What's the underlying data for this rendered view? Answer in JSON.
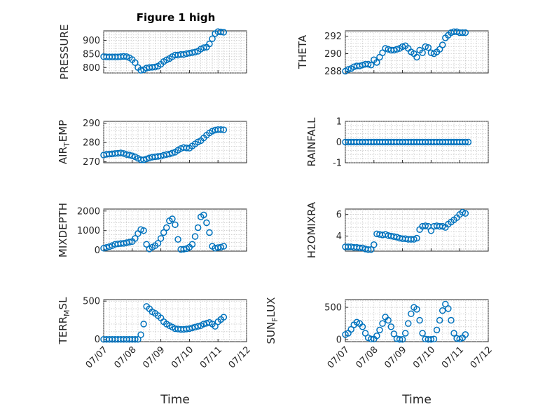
{
  "figure": {
    "title": "Figure 1 high",
    "marker_color": "#0072BD"
  },
  "chart_data": [
    {
      "type": "scatter",
      "ylabel": "PRESSURE",
      "xlabel": "",
      "ylim": [
        780,
        935
      ],
      "yticks": [
        800,
        850,
        900
      ],
      "xlim": [
        "07/07",
        "07/12"
      ],
      "xticks": [
        "07/07",
        "07/08",
        "07/09",
        "07/10",
        "07/11",
        "07/12"
      ],
      "grid": true,
      "x": [
        0.0,
        0.1,
        0.2,
        0.3,
        0.4,
        0.5,
        0.6,
        0.7,
        0.8,
        0.9,
        1.0,
        1.1,
        1.2,
        1.3,
        1.4,
        1.5,
        1.6,
        1.7,
        1.8,
        1.9,
        2.0,
        2.1,
        2.2,
        2.3,
        2.4,
        2.5,
        2.6,
        2.7,
        2.8,
        2.9,
        3.0,
        3.1,
        3.2,
        3.3,
        3.4,
        3.5,
        3.6,
        3.7,
        3.8,
        3.9,
        4.0,
        4.1,
        4.2
      ],
      "y": [
        840,
        839,
        839,
        839,
        839,
        839,
        840,
        841,
        840,
        836,
        829,
        818,
        800,
        790,
        792,
        798,
        800,
        801,
        802,
        805,
        812,
        822,
        828,
        833,
        840,
        846,
        846,
        848,
        848,
        851,
        853,
        855,
        857,
        860,
        868,
        873,
        875,
        887,
        906,
        925,
        932,
        931,
        930
      ]
    },
    {
      "type": "scatter",
      "ylabel": "THETA",
      "xlabel": "",
      "ylim": [
        287.8,
        292.6
      ],
      "yticks": [
        288,
        290,
        292
      ],
      "xlim": [
        "07/07",
        "07/12"
      ],
      "xticks": [
        "07/07",
        "07/08",
        "07/09",
        "07/10",
        "07/11",
        "07/12"
      ],
      "grid": true,
      "x": [
        0.0,
        0.1,
        0.2,
        0.3,
        0.4,
        0.5,
        0.6,
        0.7,
        0.8,
        0.9,
        1.0,
        1.1,
        1.2,
        1.3,
        1.4,
        1.5,
        1.6,
        1.7,
        1.8,
        1.9,
        2.0,
        2.1,
        2.2,
        2.3,
        2.4,
        2.5,
        2.6,
        2.7,
        2.8,
        2.9,
        3.0,
        3.1,
        3.2,
        3.3,
        3.4,
        3.5,
        3.6,
        3.7,
        3.8,
        3.9,
        4.0,
        4.1,
        4.2
      ],
      "y": [
        288.0,
        288.2,
        288.3,
        288.5,
        288.6,
        288.6,
        288.7,
        288.8,
        288.8,
        288.7,
        289.3,
        289.0,
        289.6,
        290.1,
        290.6,
        290.5,
        290.4,
        290.4,
        290.5,
        290.6,
        290.8,
        290.9,
        290.6,
        290.2,
        290.0,
        289.6,
        290.4,
        290.1,
        290.8,
        290.7,
        290.1,
        290.0,
        290.2,
        290.5,
        291.0,
        291.8,
        292.1,
        292.4,
        292.5,
        292.5,
        292.4,
        292.4,
        292.4
      ]
    },
    {
      "type": "scatter",
      "ylabel": "AIR_TEMP",
      "ylabel_main": "AIR",
      "ylabel_sub": "T",
      "ylabel_rest": "EMP",
      "xlabel": "",
      "ylim": [
        269.5,
        291
      ],
      "yticks": [
        270,
        280,
        290
      ],
      "xlim": [
        "07/07",
        "07/12"
      ],
      "xticks": [
        "07/07",
        "07/08",
        "07/09",
        "07/10",
        "07/11",
        "07/12"
      ],
      "grid": true,
      "x": [
        0.0,
        0.1,
        0.2,
        0.3,
        0.4,
        0.5,
        0.6,
        0.7,
        0.8,
        0.9,
        1.0,
        1.1,
        1.2,
        1.3,
        1.4,
        1.5,
        1.6,
        1.7,
        1.8,
        1.9,
        2.0,
        2.1,
        2.2,
        2.3,
        2.4,
        2.5,
        2.6,
        2.7,
        2.8,
        2.9,
        3.0,
        3.1,
        3.2,
        3.3,
        3.4,
        3.5,
        3.6,
        3.7,
        3.8,
        3.9,
        4.0,
        4.1,
        4.2
      ],
      "y": [
        273.5,
        273.9,
        274.0,
        274.1,
        274.3,
        274.4,
        274.6,
        274.3,
        273.8,
        273.5,
        273.1,
        272.6,
        271.8,
        271.1,
        271.0,
        271.5,
        272.0,
        272.4,
        272.6,
        272.8,
        272.9,
        273.4,
        273.8,
        274.0,
        274.5,
        275.0,
        276.0,
        276.9,
        277.4,
        277.2,
        277.1,
        278.2,
        279.3,
        280.3,
        281.0,
        282.4,
        283.8,
        285.0,
        285.9,
        286.5,
        286.7,
        286.7,
        286.6
      ]
    },
    {
      "type": "scatter",
      "ylabel": "RAINFALL",
      "xlabel": "",
      "ylim": [
        -1,
        1
      ],
      "yticks": [
        -1,
        0,
        1
      ],
      "xlim": [
        "07/07",
        "07/12"
      ],
      "xticks": [
        "07/07",
        "07/08",
        "07/09",
        "07/10",
        "07/11",
        "07/12"
      ],
      "grid": true,
      "x": [
        0.0,
        0.1,
        0.2,
        0.3,
        0.4,
        0.5,
        0.6,
        0.7,
        0.8,
        0.9,
        1.0,
        1.1,
        1.2,
        1.3,
        1.4,
        1.5,
        1.6,
        1.7,
        1.8,
        1.9,
        2.0,
        2.1,
        2.2,
        2.3,
        2.4,
        2.5,
        2.6,
        2.7,
        2.8,
        2.9,
        3.0,
        3.1,
        3.2,
        3.3,
        3.4,
        3.5,
        3.6,
        3.7,
        3.8,
        3.9,
        4.0,
        4.1,
        4.2,
        4.3
      ],
      "y": [
        0,
        0,
        0,
        0,
        0,
        0,
        0,
        0,
        0,
        0,
        0,
        0,
        0,
        0,
        0,
        0,
        0,
        0,
        0,
        0,
        0,
        0,
        0,
        0,
        0,
        0,
        0,
        0,
        0,
        0,
        0,
        0,
        0,
        0,
        0,
        0,
        0,
        0,
        0,
        0,
        0,
        0,
        0,
        0
      ]
    },
    {
      "type": "scatter",
      "ylabel": "MIXDEPTH",
      "xlabel": "",
      "ylim": [
        -50,
        2100
      ],
      "yticks": [
        0,
        1000,
        2000
      ],
      "xlim": [
        "07/07",
        "07/12"
      ],
      "xticks": [
        "07/07",
        "07/08",
        "07/09",
        "07/10",
        "07/11",
        "07/12"
      ],
      "grid": true,
      "x": [
        0.0,
        0.1,
        0.2,
        0.3,
        0.4,
        0.5,
        0.6,
        0.7,
        0.8,
        0.9,
        1.0,
        1.1,
        1.2,
        1.3,
        1.4,
        1.5,
        1.6,
        1.7,
        1.8,
        1.9,
        2.0,
        2.1,
        2.2,
        2.3,
        2.4,
        2.5,
        2.6,
        2.7,
        2.8,
        2.9,
        3.0,
        3.1,
        3.2,
        3.3,
        3.4,
        3.5,
        3.6,
        3.7,
        3.8,
        3.9,
        4.0,
        4.1,
        4.2
      ],
      "y": [
        100,
        140,
        180,
        230,
        300,
        320,
        340,
        350,
        380,
        410,
        440,
        600,
        850,
        1050,
        1000,
        300,
        60,
        150,
        230,
        350,
        600,
        900,
        1150,
        1500,
        1600,
        1300,
        550,
        40,
        50,
        80,
        150,
        300,
        700,
        1150,
        1700,
        1800,
        1400,
        900,
        200,
        100,
        130,
        150,
        200
      ]
    },
    {
      "type": "scatter",
      "ylabel": "H2OMIXRA",
      "xlabel": "",
      "ylim": [
        2.6,
        6.5
      ],
      "yticks": [
        4,
        6
      ],
      "xlim": [
        "07/07",
        "07/12"
      ],
      "xticks": [
        "07/07",
        "07/08",
        "07/09",
        "07/10",
        "07/11",
        "07/12"
      ],
      "grid": true,
      "x": [
        0.0,
        0.1,
        0.2,
        0.3,
        0.4,
        0.5,
        0.6,
        0.7,
        0.8,
        0.9,
        1.0,
        1.1,
        1.2,
        1.3,
        1.4,
        1.5,
        1.6,
        1.7,
        1.8,
        1.9,
        2.0,
        2.1,
        2.2,
        2.3,
        2.4,
        2.5,
        2.6,
        2.7,
        2.8,
        2.9,
        3.0,
        3.1,
        3.2,
        3.3,
        3.4,
        3.5,
        3.6,
        3.7,
        3.8,
        3.9,
        4.0,
        4.1,
        4.2
      ],
      "y": [
        3.0,
        3.0,
        3.0,
        2.95,
        2.95,
        2.9,
        2.9,
        2.8,
        2.75,
        2.75,
        3.2,
        4.2,
        4.15,
        4.1,
        4.15,
        4.05,
        4.0,
        3.95,
        3.9,
        3.8,
        3.75,
        3.75,
        3.7,
        3.7,
        3.7,
        3.8,
        4.6,
        4.9,
        4.95,
        4.9,
        4.5,
        4.9,
        4.95,
        4.9,
        4.9,
        4.8,
        5.1,
        5.3,
        5.5,
        5.7,
        6.0,
        6.2,
        6.1
      ]
    },
    {
      "type": "scatter",
      "ylabel": "TERR_MSL",
      "ylabel_main": "TERR",
      "ylabel_sub": "M",
      "ylabel_rest": "SL",
      "xlabel": "Time",
      "ylim": [
        -30,
        520
      ],
      "yticks": [
        0,
        500
      ],
      "xlim": [
        "07/07",
        "07/12"
      ],
      "xticks": [
        "07/07",
        "07/08",
        "07/09",
        "07/10",
        "07/11",
        "07/12"
      ],
      "grid": true,
      "x": [
        0.0,
        0.1,
        0.2,
        0.3,
        0.4,
        0.5,
        0.6,
        0.7,
        0.8,
        0.9,
        1.0,
        1.1,
        1.2,
        1.3,
        1.4,
        1.5,
        1.6,
        1.7,
        1.8,
        1.9,
        2.0,
        2.1,
        2.2,
        2.3,
        2.4,
        2.5,
        2.6,
        2.7,
        2.8,
        2.9,
        3.0,
        3.1,
        3.2,
        3.3,
        3.4,
        3.5,
        3.6,
        3.7,
        3.8,
        3.9,
        4.0,
        4.1,
        4.2
      ],
      "y": [
        0,
        0,
        0,
        0,
        0,
        0,
        0,
        0,
        0,
        0,
        0,
        0,
        0,
        60,
        200,
        430,
        400,
        360,
        340,
        310,
        280,
        230,
        200,
        180,
        160,
        140,
        135,
        130,
        130,
        135,
        140,
        150,
        160,
        170,
        180,
        200,
        210,
        220,
        200,
        170,
        230,
        260,
        290
      ]
    },
    {
      "type": "scatter",
      "ylabel": "SUN_FLUX",
      "ylabel_main": "SUN",
      "ylabel_sub": "F",
      "ylabel_rest": "LUX",
      "xlabel": "Time",
      "ylim": [
        -30,
        620
      ],
      "yticks": [
        0,
        500
      ],
      "xlim": [
        "07/07",
        "07/12"
      ],
      "xticks": [
        "07/07",
        "07/08",
        "07/09",
        "07/10",
        "07/11",
        "07/12"
      ],
      "grid": true,
      "x": [
        0.0,
        0.1,
        0.2,
        0.3,
        0.4,
        0.5,
        0.6,
        0.7,
        0.8,
        0.9,
        1.0,
        1.1,
        1.2,
        1.3,
        1.4,
        1.5,
        1.6,
        1.7,
        1.8,
        1.9,
        2.0,
        2.1,
        2.2,
        2.3,
        2.4,
        2.5,
        2.6,
        2.7,
        2.8,
        2.9,
        3.0,
        3.1,
        3.2,
        3.3,
        3.4,
        3.5,
        3.6,
        3.7,
        3.8,
        3.9,
        4.0,
        4.1,
        4.2
      ],
      "y": [
        80,
        100,
        160,
        230,
        270,
        250,
        200,
        100,
        30,
        10,
        10,
        60,
        150,
        250,
        350,
        300,
        200,
        90,
        15,
        5,
        5,
        100,
        250,
        400,
        500,
        470,
        300,
        100,
        10,
        5,
        5,
        10,
        150,
        300,
        450,
        550,
        480,
        300,
        100,
        20,
        10,
        30,
        80
      ]
    }
  ]
}
